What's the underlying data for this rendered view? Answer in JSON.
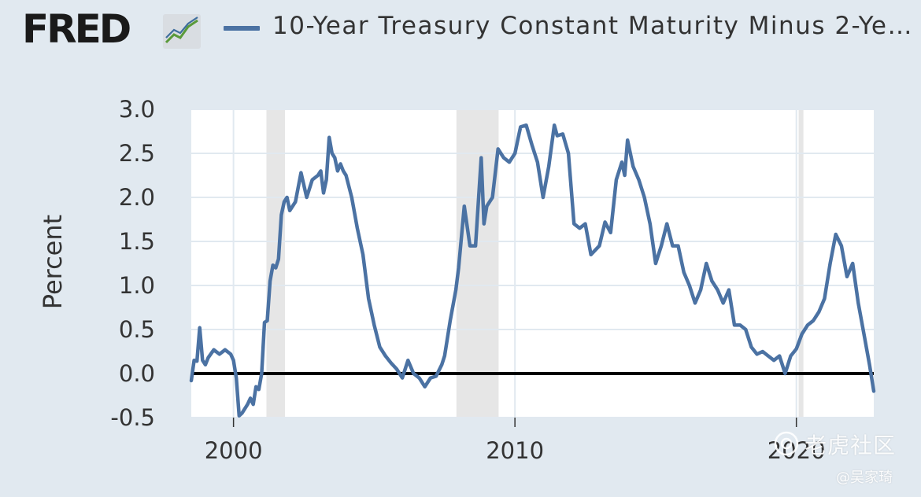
{
  "header": {
    "logo_text": "FRED",
    "logo_icon": "trend-chart-icon",
    "legend_label": "10-Year Treasury Constant Maturity Minus 2-Ye…"
  },
  "colors": {
    "background": "#e1e9f0",
    "plot_background": "#ffffff",
    "series": "#4b72a3",
    "recession": "#e6e6e6",
    "zero_line": "#000000"
  },
  "chart_data": {
    "type": "line",
    "title": "",
    "xlabel": "",
    "ylabel": "Percent",
    "xlim": [
      1998.5,
      2022.75
    ],
    "ylim": [
      -0.5,
      3.0
    ],
    "yticks": [
      "3.0",
      "2.5",
      "2.0",
      "1.5",
      "1.0",
      "0.5",
      "0.0",
      "-0.5"
    ],
    "ytick_values": [
      3.0,
      2.5,
      2.0,
      1.5,
      1.0,
      0.5,
      0.0,
      -0.5
    ],
    "xticks": [
      "2000",
      "2010",
      "2020"
    ],
    "xtick_values": [
      2000,
      2010,
      2020
    ],
    "grid": true,
    "reference_line": 0.0,
    "recessions": [
      [
        2001.17,
        2001.83
      ],
      [
        2007.92,
        2009.42
      ],
      [
        2020.08,
        2020.25
      ]
    ],
    "series": [
      {
        "x": [
          1998.5,
          1998.6,
          1998.7,
          1998.8,
          1998.9,
          1999.0,
          1999.1,
          1999.3,
          1999.5,
          1999.7,
          1999.9,
          2000.0,
          2000.1,
          2000.2,
          2000.3,
          2000.5,
          2000.6,
          2000.7,
          2000.8,
          2000.9,
          2001.0,
          2001.1,
          2001.2,
          2001.3,
          2001.4,
          2001.5,
          2001.6,
          2001.7,
          2001.8,
          2001.9,
          2002.0,
          2002.2,
          2002.4,
          2002.6,
          2002.8,
          2003.0,
          2003.1,
          2003.2,
          2003.3,
          2003.4,
          2003.5,
          2003.6,
          2003.7,
          2003.8,
          2003.9,
          2004.0,
          2004.2,
          2004.4,
          2004.6,
          2004.8,
          2005.0,
          2005.2,
          2005.4,
          2005.6,
          2005.8,
          2006.0,
          2006.2,
          2006.4,
          2006.6,
          2006.8,
          2007.0,
          2007.2,
          2007.4,
          2007.5,
          2007.7,
          2007.9,
          2008.0,
          2008.2,
          2008.4,
          2008.6,
          2008.8,
          2008.9,
          2009.0,
          2009.2,
          2009.4,
          2009.6,
          2009.8,
          2010.0,
          2010.1,
          2010.2,
          2010.4,
          2010.6,
          2010.8,
          2011.0,
          2011.2,
          2011.4,
          2011.5,
          2011.7,
          2011.9,
          2012.1,
          2012.3,
          2012.5,
          2012.7,
          2013.0,
          2013.2,
          2013.4,
          2013.6,
          2013.8,
          2013.9,
          2014.0,
          2014.2,
          2014.4,
          2014.6,
          2014.8,
          2015.0,
          2015.2,
          2015.4,
          2015.6,
          2015.8,
          2016.0,
          2016.2,
          2016.4,
          2016.6,
          2016.8,
          2017.0,
          2017.2,
          2017.4,
          2017.6,
          2017.8,
          2018.0,
          2018.2,
          2018.4,
          2018.6,
          2018.8,
          2019.0,
          2019.2,
          2019.4,
          2019.6,
          2019.8,
          2020.0,
          2020.2,
          2020.4,
          2020.6,
          2020.8,
          2021.0,
          2021.2,
          2021.4,
          2021.6,
          2021.8,
          2022.0,
          2022.2,
          2022.4,
          2022.6,
          2022.75
        ],
        "values": [
          -0.08,
          0.15,
          0.14,
          0.52,
          0.15,
          0.1,
          0.18,
          0.27,
          0.22,
          0.27,
          0.22,
          0.15,
          -0.05,
          -0.48,
          -0.45,
          -0.35,
          -0.28,
          -0.35,
          -0.15,
          -0.18,
          0.0,
          0.58,
          0.6,
          1.05,
          1.23,
          1.2,
          1.3,
          1.8,
          1.95,
          2.0,
          1.85,
          1.95,
          2.28,
          2.0,
          2.2,
          2.25,
          2.3,
          2.05,
          2.2,
          2.68,
          2.5,
          2.45,
          2.3,
          2.38,
          2.3,
          2.25,
          2.0,
          1.65,
          1.35,
          0.85,
          0.55,
          0.3,
          0.2,
          0.12,
          0.05,
          -0.05,
          0.15,
          0.0,
          -0.05,
          -0.15,
          -0.05,
          -0.03,
          0.1,
          0.2,
          0.6,
          0.95,
          1.2,
          1.9,
          1.45,
          1.45,
          2.45,
          1.7,
          1.9,
          2.0,
          2.55,
          2.45,
          2.4,
          2.5,
          2.65,
          2.8,
          2.82,
          2.6,
          2.4,
          2.0,
          2.35,
          2.82,
          2.7,
          2.72,
          2.5,
          1.7,
          1.65,
          1.7,
          1.35,
          1.45,
          1.72,
          1.6,
          2.2,
          2.4,
          2.25,
          2.65,
          2.35,
          2.2,
          2.0,
          1.7,
          1.25,
          1.45,
          1.7,
          1.45,
          1.45,
          1.15,
          1.0,
          0.8,
          0.95,
          1.25,
          1.05,
          0.95,
          0.8,
          0.95,
          0.55,
          0.55,
          0.5,
          0.3,
          0.22,
          0.25,
          0.2,
          0.15,
          0.2,
          0.0,
          0.2,
          0.28,
          0.45,
          0.55,
          0.6,
          0.7,
          0.85,
          1.25,
          1.58,
          1.45,
          1.1,
          1.25,
          0.8,
          0.45,
          0.1,
          -0.2
        ]
      }
    ]
  },
  "watermark": {
    "icon": "camera-icon",
    "text": "老虎社区",
    "user": "@吴家琦"
  }
}
